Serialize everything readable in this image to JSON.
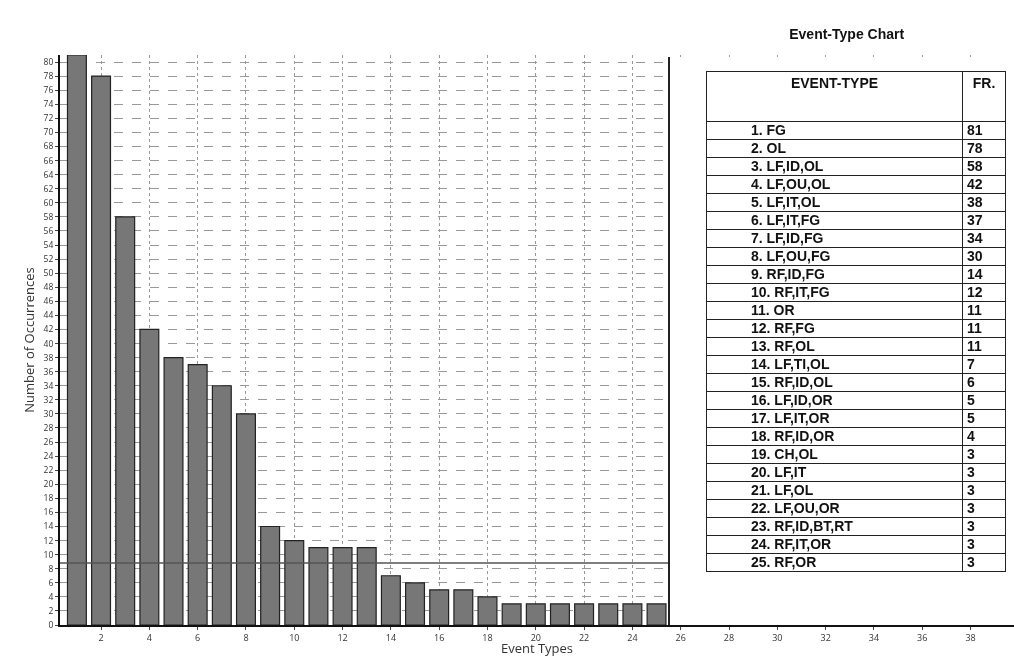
{
  "chart_data": [
    {
      "type": "bar",
      "title": "Event-Type Chart",
      "xlabel": "Event Types",
      "ylabel": "Number of Occurrences",
      "x": [
        1,
        2,
        3,
        4,
        5,
        6,
        7,
        8,
        9,
        10,
        11,
        12,
        13,
        14,
        15,
        16,
        17,
        18,
        19,
        20,
        21,
        22,
        23,
        24,
        25
      ],
      "values": [
        81,
        78,
        58,
        42,
        38,
        37,
        34,
        30,
        14,
        12,
        11,
        11,
        11,
        7,
        6,
        5,
        5,
        4,
        3,
        3,
        3,
        3,
        3,
        3,
        3
      ],
      "color": "#777777",
      "xlim": [
        0.3,
        39.8
      ],
      "xticks": [
        2,
        4,
        6,
        8,
        10,
        12,
        14,
        16,
        18,
        20,
        22,
        24,
        26,
        28,
        30,
        32,
        34,
        36,
        38
      ],
      "ylim": [
        0,
        81
      ],
      "yticks": [
        0,
        2,
        4,
        6,
        8,
        10,
        12,
        14,
        16,
        18,
        20,
        22,
        24,
        26,
        28,
        30,
        32,
        34,
        36,
        38,
        40,
        42,
        44,
        46,
        48,
        50,
        52,
        54,
        56,
        58,
        60,
        62,
        64,
        66,
        68,
        70,
        72,
        74,
        76,
        78,
        80
      ],
      "grid": true,
      "ref_lines": [
        {
          "axis": "y",
          "value": 8.8,
          "color": "#555555"
        }
      ]
    },
    {
      "type": "other",
      "annotations": [
        "EVENT-TYPE",
        "FR.",
        "1. FG",
        "81",
        "2. OL",
        "78",
        "3. LF,ID,OL",
        "58",
        "4. LF,OU,OL",
        "42",
        "5. LF,IT,OL",
        "38",
        "6. LF,IT,FG",
        "37",
        "7. LF,ID,FG",
        "34",
        "8. LF,OU,FG",
        "30",
        "9. RF,ID,FG",
        "14",
        "10. RF,IT,FG",
        "12",
        "11. OR",
        "11",
        "12. RF,FG",
        "11",
        "13. RF,OL",
        "11",
        "14. LF,TI,OL",
        "7",
        "15. RF,ID,OL",
        "6",
        "16. LF,ID,OR",
        "5",
        "17. LF,IT,OR",
        "5",
        "18. RF,ID,OR",
        "4",
        "19. CH,OL",
        "3",
        "20. LF,IT",
        "3",
        "21. LF,OL",
        "3",
        "22. LF,OU,OR",
        "3",
        "23. RF,ID,BT,RT",
        "3",
        "24. RF,IT,OR",
        "3",
        "25. RF,OR",
        "3"
      ]
    }
  ]
}
